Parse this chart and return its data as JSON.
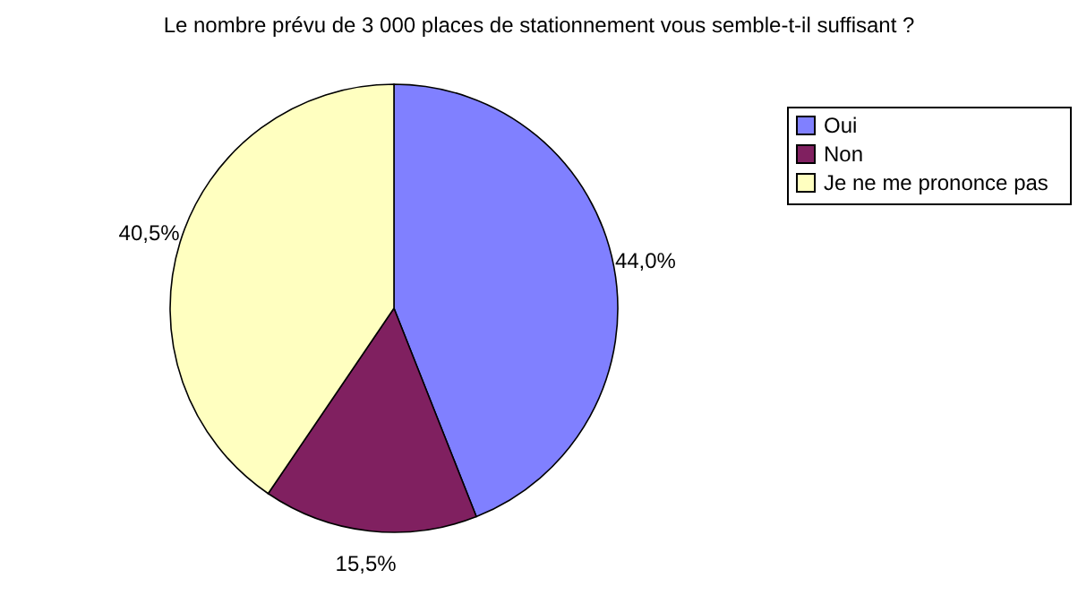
{
  "chart_data": {
    "type": "pie",
    "title": "Le nombre prévu de 3 000 places de stationnement vous semble-t-il suffisant ?",
    "categories": [
      "Oui",
      "Non",
      "Je ne me prononce pas"
    ],
    "values": [
      44.0,
      15.5,
      40.5
    ],
    "colors": [
      "#8080ff",
      "#802060",
      "#ffffc0"
    ],
    "value_labels": [
      "44,0%",
      "15,5%",
      "40,5%"
    ],
    "legend": "top right"
  }
}
